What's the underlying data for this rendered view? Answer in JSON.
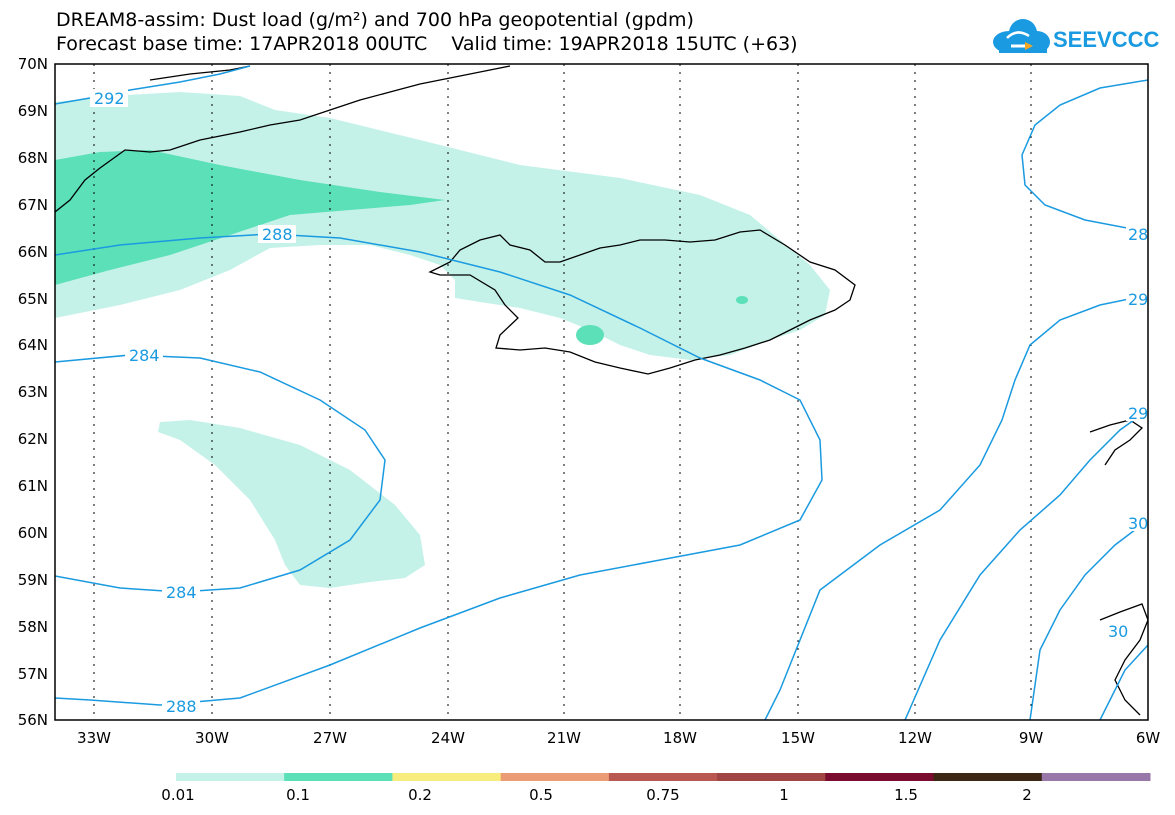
{
  "title": {
    "line1": "DREAM8-assim: Dust load (g/m²) and 700 hPa geopotential (gpdm)",
    "line2": "Forecast base time: 17APR2018 00UTC    Valid time: 19APR2018 15UTC (+63)"
  },
  "logo": {
    "text": "SEEVCCC",
    "icon": "cloud-logo-icon",
    "color": "#1a9ae0"
  },
  "map": {
    "lon_range": [
      -34,
      -6
    ],
    "lat_range": [
      56,
      70
    ],
    "lat_labels": [
      "70N",
      "69N",
      "68N",
      "67N",
      "66N",
      "65N",
      "64N",
      "63N",
      "62N",
      "61N",
      "60N",
      "59N",
      "58N",
      "57N",
      "56N"
    ],
    "lon_labels": [
      "33W",
      "30W",
      "27W",
      "24W",
      "21W",
      "18W",
      "15W",
      "12W",
      "9W",
      "6W"
    ],
    "contour_color": "#1a9ae0",
    "contour_labels": [
      "292",
      "288",
      "284",
      "284",
      "288",
      "28",
      "29",
      "29",
      "30",
      "30"
    ]
  },
  "colorbar": {
    "colors": [
      "#c4f2e8",
      "#5ce0b8",
      "#f8ec7c",
      "#ec9c74",
      "#b85850",
      "#a04444",
      "#7a0c30",
      "#3c2614",
      "#9878a8"
    ],
    "labels": [
      "0.01",
      "0.1",
      "0.2",
      "0.5",
      "0.75",
      "1",
      "1.5",
      "2"
    ]
  }
}
